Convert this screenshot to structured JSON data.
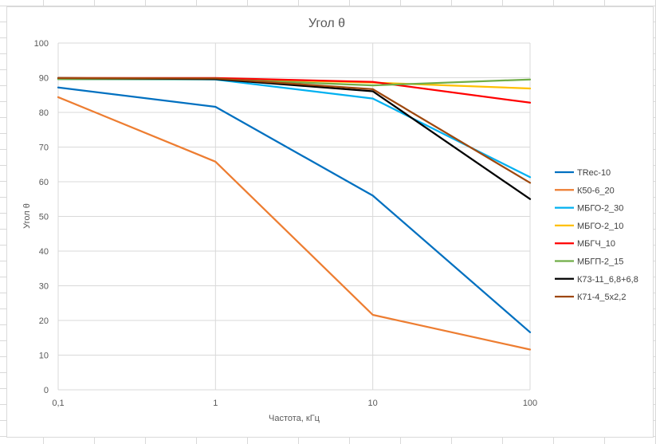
{
  "chart_data": {
    "type": "line",
    "title": "Угол θ",
    "xlabel": "Частота, кГц",
    "ylabel": "Угол θ",
    "x_scale": "log",
    "x": [
      0.1,
      1,
      10,
      100
    ],
    "x_tick_labels": [
      "0,1",
      "1",
      "10",
      "100"
    ],
    "ylim": [
      0,
      100
    ],
    "y_ticks": [
      0,
      10,
      20,
      30,
      40,
      50,
      60,
      70,
      80,
      90,
      100
    ],
    "grid": "vertical and horizontal",
    "legend_position": "right",
    "series": [
      {
        "name": "TRec-10",
        "color": "#0070c0",
        "values": [
          87.2,
          81.6,
          56.0,
          16.6
        ]
      },
      {
        "name": "К50-6_20",
        "color": "#ed7d31",
        "values": [
          84.4,
          65.8,
          21.6,
          11.6
        ]
      },
      {
        "name": "МБГО-2_30",
        "color": "#00b0f0",
        "values": [
          89.6,
          89.5,
          84.0,
          61.3
        ]
      },
      {
        "name": "МБГО-2_10",
        "color": "#ffc000",
        "values": [
          89.8,
          89.8,
          88.6,
          86.9
        ]
      },
      {
        "name": "МБГЧ_10",
        "color": "#ff0000",
        "values": [
          89.9,
          89.9,
          88.8,
          82.8
        ]
      },
      {
        "name": "МБГП-2_15",
        "color": "#70ad47",
        "values": [
          89.6,
          89.6,
          87.8,
          89.5
        ]
      },
      {
        "name": "К73-11_6,8+6,8",
        "color": "#000000",
        "values": [
          89.9,
          89.6,
          86.1,
          55.0
        ]
      },
      {
        "name": "К71-4_5х2,2",
        "color": "#9e480e",
        "values": [
          89.9,
          89.8,
          86.7,
          59.7
        ]
      }
    ]
  }
}
